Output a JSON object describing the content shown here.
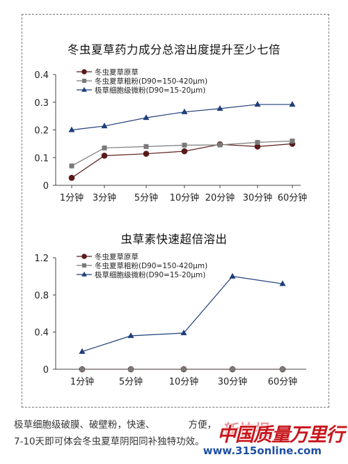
{
  "chart_data": [
    {
      "type": "line",
      "title": "冬虫夏草药力成分总溶出度提升至少七倍",
      "categories": [
        "1分钟",
        "3分钟",
        "5分钟",
        "10分钟",
        "20分钟",
        "30分钟",
        "60分钟"
      ],
      "ylim": [
        0,
        0.4
      ],
      "yticks": [
        "0",
        "0.1",
        "0.2",
        "0.3",
        "0.4"
      ],
      "legend_position": "top-left",
      "series": [
        {
          "name": "冬虫夏草原草",
          "marker": "circle",
          "color": "#5a1a1a",
          "values": [
            0.027,
            0.107,
            0.114,
            0.123,
            0.148,
            0.14,
            0.15
          ]
        },
        {
          "name": "冬虫夏草粗粉(D90=150-420μm)",
          "marker": "square",
          "color": "#7a7a7a",
          "values": [
            0.07,
            0.135,
            0.14,
            0.145,
            0.146,
            0.155,
            0.16
          ]
        },
        {
          "name": "极草细胞级微粉(D90=15-20μm)",
          "marker": "triangle",
          "color": "#1f3f7a",
          "values": [
            0.2,
            0.214,
            0.244,
            0.265,
            0.277,
            0.292,
            0.292
          ]
        }
      ]
    },
    {
      "type": "line",
      "title": "虫草素快速超倍溶出",
      "categories": [
        "1分钟",
        "5分钟",
        "10分钟",
        "30分钟",
        "60分钟"
      ],
      "ylim": [
        0,
        1.2
      ],
      "yticks": [
        "0",
        "0.4",
        "0.8",
        "1.2"
      ],
      "legend_position": "top-left",
      "series": [
        {
          "name": "冬虫夏草原草",
          "marker": "circle",
          "color": "#5a1a1a",
          "values": [
            0,
            0,
            0,
            0,
            0
          ]
        },
        {
          "name": "冬虫夏草粗粉(D90=150-420μm)",
          "marker": "square",
          "color": "#7a7a7a",
          "values": [
            0,
            0,
            0,
            0,
            0
          ]
        },
        {
          "name": "极草细胞级微粉(D90=15-20μm)",
          "marker": "triangle",
          "color": "#1f3f7a",
          "values": [
            0.19,
            0.36,
            0.39,
            1.0,
            0.92
          ]
        }
      ]
    }
  ],
  "caption": {
    "line1": "极草细胞级破膜、破壁粉，快速、",
    "line1_tail": "方便，",
    "line2": "7-10天即可体会冬虫夏草阴阳同补",
    "line2_tail": "独特功效。"
  },
  "watermark": {
    "logo": "中国质量万里行",
    "url": "www.315online.com",
    "stamp": "新快报"
  }
}
